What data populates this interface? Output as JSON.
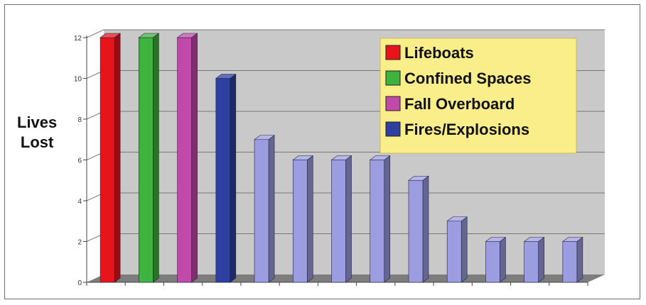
{
  "chart_data": {
    "type": "bar",
    "title": "",
    "ylabel_lines": [
      "Lives",
      "Lost"
    ],
    "xlabel": "",
    "ylim": [
      0,
      12
    ],
    "yticks": [
      0,
      2,
      4,
      6,
      8,
      10,
      12
    ],
    "grid": true,
    "legend_position": "top-right",
    "legend": [
      {
        "label": "Lifeboats",
        "color": "#e8141b"
      },
      {
        "label": "Confined Spaces",
        "color": "#3fb33f"
      },
      {
        "label": "Fall Overboard",
        "color": "#c04aa8"
      },
      {
        "label": "Fires/Explosions",
        "color": "#2f3f9f"
      }
    ],
    "values": [
      12,
      12,
      12,
      10,
      7,
      6,
      6,
      6,
      5,
      3,
      2,
      2,
      2
    ],
    "bar_colors": [
      "#e8141b",
      "#3fb33f",
      "#c04aa8",
      "#2f3f9f",
      "#9c9ce0",
      "#9c9ce0",
      "#9c9ce0",
      "#9c9ce0",
      "#9c9ce0",
      "#9c9ce0",
      "#9c9ce0",
      "#9c9ce0",
      "#9c9ce0"
    ]
  }
}
